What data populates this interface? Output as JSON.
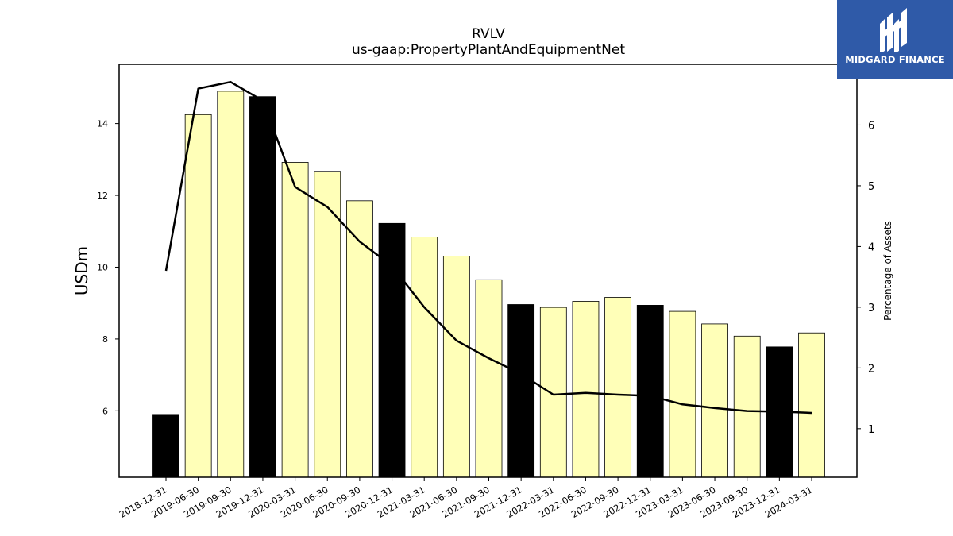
{
  "brand": {
    "name": "MIDGARD FINANCE",
    "color": "#2f5aa8"
  },
  "chart_data": {
    "type": "bar",
    "title": "RVLV",
    "subtitle": "us-gaap:PropertyPlantAndEquipmentNet",
    "ylabel": "USDm",
    "y2label": "Percentage of Assets",
    "categories": [
      "2018-12-31",
      "2019-06-30",
      "2019-09-30",
      "2019-12-31",
      "2020-03-31",
      "2020-06-30",
      "2020-09-30",
      "2020-12-31",
      "2021-03-31",
      "2021-06-30",
      "2021-09-30",
      "2021-12-31",
      "2022-03-31",
      "2022-06-30",
      "2022-09-30",
      "2022-12-31",
      "2023-03-31",
      "2023-06-30",
      "2023-09-30",
      "2023-12-31",
      "2024-03-31"
    ],
    "series": [
      {
        "type": "bar",
        "values": [
          5.9,
          14.25,
          14.9,
          14.75,
          12.92,
          12.67,
          11.85,
          11.22,
          10.84,
          10.31,
          9.65,
          8.96,
          8.88,
          9.05,
          9.16,
          8.94,
          8.77,
          8.42,
          8.08,
          7.78,
          8.17
        ],
        "fiscal_year_end": [
          true,
          false,
          false,
          true,
          false,
          false,
          false,
          true,
          false,
          false,
          false,
          true,
          false,
          false,
          false,
          true,
          false,
          false,
          false,
          true,
          false
        ]
      },
      {
        "type": "line",
        "axis": "right",
        "values": [
          3.6,
          6.6,
          6.71,
          6.4,
          4.98,
          4.65,
          4.08,
          3.68,
          3.0,
          2.45,
          2.16,
          1.9,
          1.56,
          1.59,
          1.56,
          1.54,
          1.4,
          1.34,
          1.29,
          1.28,
          1.26
        ]
      }
    ],
    "yticks": [
      6,
      8,
      10,
      12,
      14
    ],
    "y2ticks": [
      1,
      2,
      3,
      4,
      5,
      6
    ],
    "ylim": [
      4.15,
      15.65
    ],
    "y2lim": [
      0.2,
      7.0
    ],
    "colors": {
      "bar": "#ffffb8",
      "bar_fiscal_year_end": "#000000",
      "line": "#000000"
    },
    "grid": false,
    "legend": "none"
  }
}
